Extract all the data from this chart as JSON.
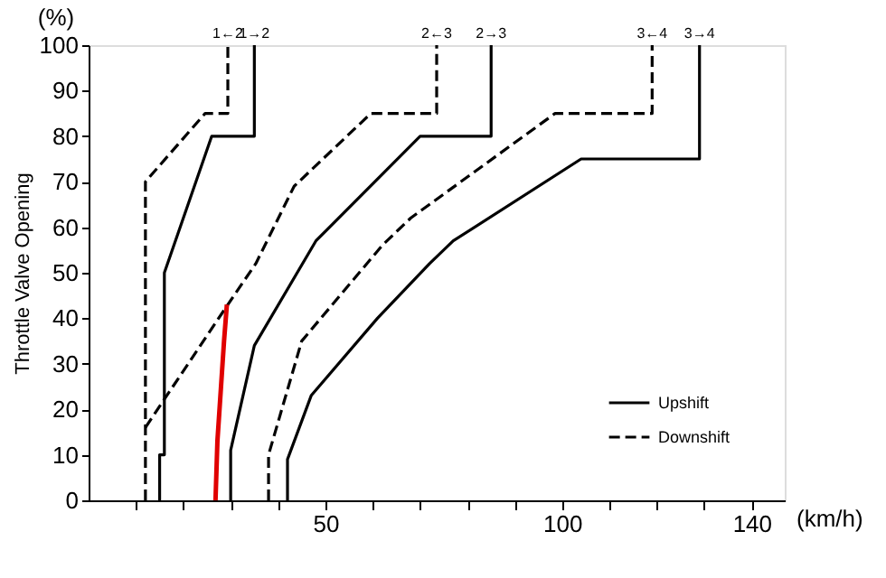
{
  "chart_data": {
    "type": "line",
    "ylabel": "Throttle Valve Opening",
    "xlabel": "(km/h)",
    "annotations": [
      "(%)",
      {
        "text": "1←2",
        "x": 29.4,
        "y": 100
      },
      {
        "text": "1→2",
        "x": 35,
        "y": 100
      },
      {
        "text": "2←3",
        "x": 73.5,
        "y": 100
      },
      {
        "text": "2→3",
        "x": 85,
        "y": 100
      },
      {
        "text": "3←4",
        "x": 119,
        "y": 100
      },
      {
        "text": "3→4",
        "x": 129,
        "y": 100
      }
    ],
    "series": [
      {
        "name": "Upshift",
        "color": "#000000",
        "line_style": "solid",
        "x": [
          15,
          15,
          16,
          16,
          26,
          35,
          35
        ],
        "values": [
          0,
          10,
          10,
          50,
          80,
          80,
          100
        ]
      },
      {
        "name": "Downshift",
        "color": "#000000",
        "line_style": "dashed",
        "x": [
          12,
          12,
          24.6,
          29.4,
          29.4
        ],
        "values": [
          0,
          70,
          85,
          85,
          100
        ]
      },
      {
        "color": "#000000",
        "line_style": "solid",
        "x": [
          30,
          30,
          35,
          48,
          70,
          85,
          85
        ],
        "values": [
          0,
          11,
          34,
          57,
          80,
          80,
          100
        ]
      },
      {
        "color": "#000000",
        "line_style": "dashed",
        "x": [
          12,
          29.4,
          35.3,
          43.4,
          59.6,
          73.5,
          73.5
        ],
        "values": [
          16,
          43,
          52,
          69,
          85,
          85,
          100
        ]
      },
      {
        "color": "#000000",
        "line_style": "solid",
        "x": [
          42,
          42,
          47,
          61,
          72,
          77,
          104,
          129,
          129
        ],
        "values": [
          0,
          9,
          23,
          40,
          52,
          57,
          75,
          75,
          100
        ]
      },
      {
        "color": "#000000",
        "line_style": "dashed",
        "x": [
          38,
          38,
          45,
          62,
          68,
          98.5,
          119,
          119
        ],
        "values": [
          0,
          10,
          35,
          56,
          62,
          85,
          85,
          100
        ]
      },
      {
        "color": "#e00000",
        "line_style": "solid",
        "x": [
          26.8,
          27.2,
          28.6,
          29.2
        ],
        "values": [
          0,
          13,
          35,
          43
        ]
      }
    ],
    "xlim": [
      0,
      147
    ],
    "ylim": [
      0,
      100
    ],
    "xticks": [
      {
        "value": 10,
        "label": null
      },
      {
        "value": 20,
        "label": null
      },
      {
        "value": 30,
        "label": null
      },
      {
        "value": 40,
        "label": null
      },
      50,
      {
        "value": 60,
        "label": null
      },
      {
        "value": 70,
        "label": null
      },
      {
        "value": 80,
        "label": null
      },
      {
        "value": 90,
        "label": null
      },
      100,
      {
        "value": 110,
        "label": null
      },
      {
        "value": 120,
        "label": null
      },
      {
        "value": 130,
        "label": null
      },
      140
    ],
    "yticks": [
      0,
      10,
      20,
      30,
      40,
      50,
      60,
      70,
      80,
      90,
      100
    ],
    "grid": false,
    "legend": "bottom right",
    "marker": "none"
  }
}
